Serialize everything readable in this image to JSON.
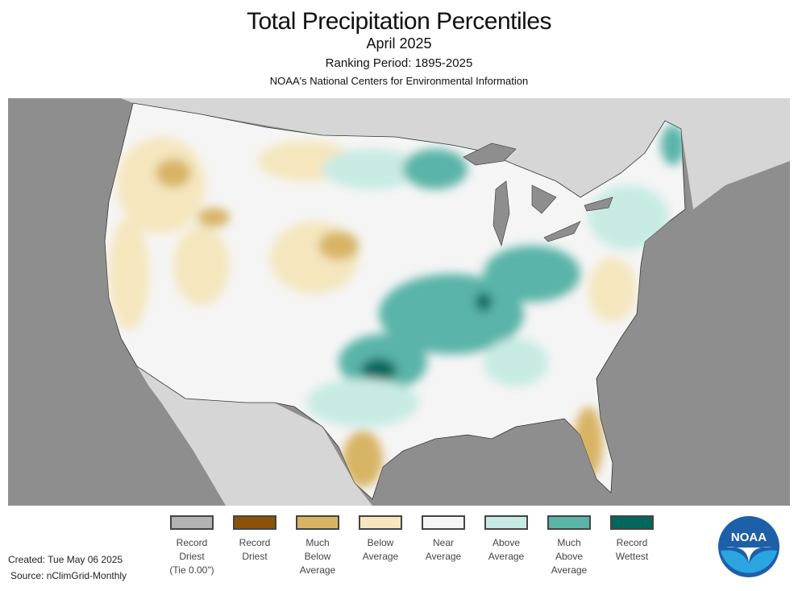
{
  "header": {
    "title": "Total Precipitation Percentiles",
    "month": "April 2025",
    "ranking_period": "Ranking Period: 1895-2025",
    "agency": "NOAA's National Centers for Environmental Information"
  },
  "legend": [
    {
      "label": "Record Driest (Tie 0.00\")",
      "lines": [
        "Record",
        "Driest",
        "(Tie 0.00\")"
      ],
      "color": "#b3b3b3"
    },
    {
      "label": "Record Driest",
      "lines": [
        "Record",
        "Driest"
      ],
      "color": "#8a5208"
    },
    {
      "label": "Much Below Average",
      "lines": [
        "Much",
        "Below",
        "Average"
      ],
      "color": "#d8b465"
    },
    {
      "label": "Below Average",
      "lines": [
        "Below",
        "Average"
      ],
      "color": "#f5e6be"
    },
    {
      "label": "Near Average",
      "lines": [
        "Near",
        "Average"
      ],
      "color": "#f5f5f5"
    },
    {
      "label": "Above Average",
      "lines": [
        "Above",
        "Average"
      ],
      "color": "#c7ebe4"
    },
    {
      "label": "Much Above Average",
      "lines": [
        "Much",
        "Above",
        "Average"
      ],
      "color": "#5ab4a8"
    },
    {
      "label": "Record Wettest",
      "lines": [
        "Record",
        "Wettest"
      ],
      "color": "#02675c"
    }
  ],
  "footer": {
    "created": "Created: Tue May 06 2025",
    "source": "Source: nClimGrid-Monthly"
  },
  "logo": {
    "text": "NOAA"
  },
  "colors": {
    "ocean": "#8e8e8e",
    "neighbor_land": "#d6d6d6",
    "lakes": "#8e8e8e"
  }
}
